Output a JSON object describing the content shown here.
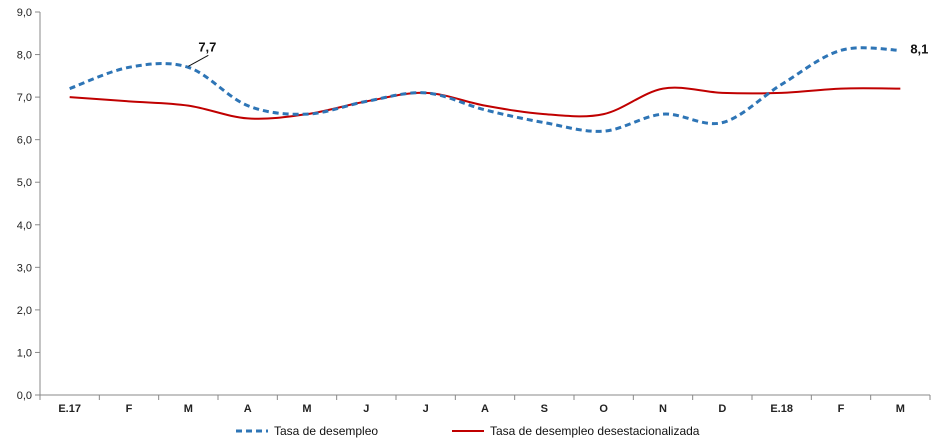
{
  "chart_data": {
    "type": "line",
    "categories": [
      "E.17",
      "F",
      "M",
      "A",
      "M",
      "J",
      "J",
      "A",
      "S",
      "O",
      "N",
      "D",
      "E.18",
      "F",
      "M"
    ],
    "series": [
      {
        "name": "Tasa de desempleo",
        "values": [
          7.2,
          7.7,
          7.7,
          6.8,
          6.6,
          6.9,
          7.1,
          6.7,
          6.4,
          6.2,
          6.6,
          6.4,
          7.3,
          8.1,
          8.1
        ],
        "color": "#2E75B6",
        "style": "dashed"
      },
      {
        "name": "Tasa de desempleo desestacionalizada",
        "values": [
          7.0,
          6.9,
          6.8,
          6.5,
          6.6,
          6.9,
          7.1,
          6.8,
          6.6,
          6.6,
          7.2,
          7.1,
          7.1,
          7.2,
          7.2
        ],
        "color": "#C00000",
        "style": "solid"
      }
    ],
    "ylim": [
      0,
      9
    ],
    "yticks": [
      "0,0",
      "1,0",
      "2,0",
      "3,0",
      "4,0",
      "5,0",
      "6,0",
      "7,0",
      "8,0",
      "9,0"
    ],
    "annotations": [
      {
        "series": 0,
        "index": 2,
        "text": "7,7"
      },
      {
        "series": 0,
        "index": 14,
        "text": "8,1"
      }
    ],
    "grid": false,
    "legend": "bottom-center"
  }
}
